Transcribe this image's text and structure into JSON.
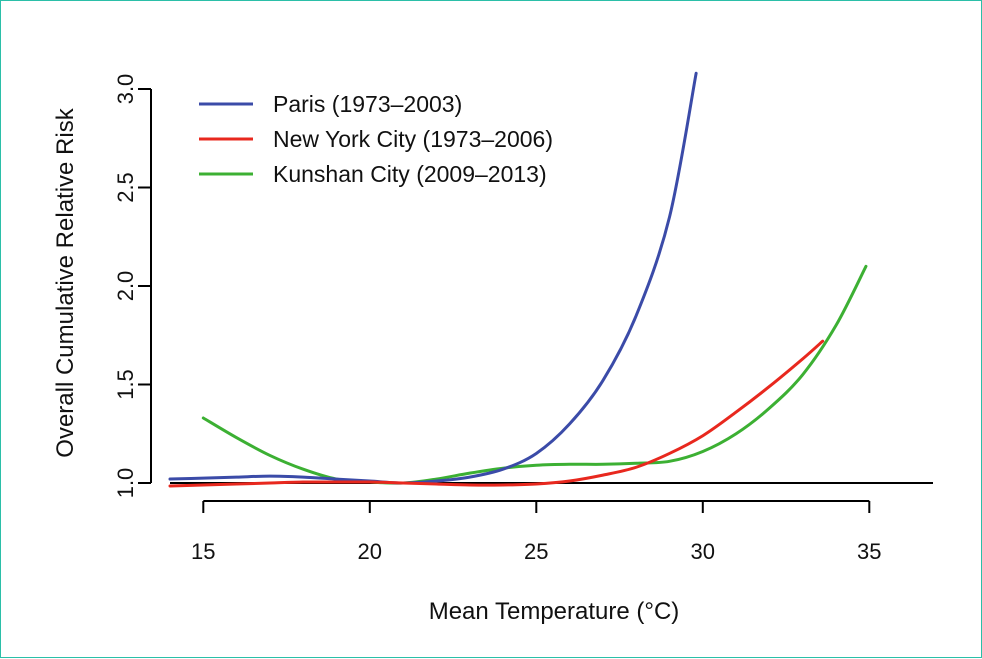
{
  "chart_data": {
    "type": "line",
    "title": "",
    "xlabel": "Mean Temperature (°C)",
    "ylabel": "Overall Cumulative Relative Risk",
    "xlim": [
      14,
      37
    ],
    "ylim": [
      1.0,
      3.0
    ],
    "x_ticks": [
      15,
      20,
      25,
      30,
      35
    ],
    "y_ticks": [
      1.0,
      1.5,
      2.0,
      2.5,
      3.0
    ],
    "x_tick_labels": [
      "15",
      "20",
      "25",
      "30",
      "35"
    ],
    "y_tick_labels": [
      "1.0",
      "1.5",
      "2.0",
      "2.5",
      "3.0"
    ],
    "reference_line_y": 1.0,
    "grid": false,
    "legend_position": "top-left",
    "series": [
      {
        "name": "Paris (1973–2003)",
        "color": "#3b4ba8",
        "x": [
          14,
          15,
          16,
          17,
          18,
          19,
          20,
          21,
          22,
          23,
          24,
          25,
          26,
          27,
          28,
          29,
          29.8
        ],
        "y": [
          1.02,
          1.025,
          1.03,
          1.035,
          1.03,
          1.02,
          1.01,
          1.0,
          1.01,
          1.03,
          1.07,
          1.15,
          1.3,
          1.52,
          1.85,
          2.35,
          3.08
        ]
      },
      {
        "name": "New York City (1973–2006)",
        "color": "#e8281e",
        "x": [
          14,
          15,
          16,
          17,
          18,
          19,
          20,
          21,
          22,
          23,
          24,
          25,
          26,
          27,
          28,
          29,
          30,
          31,
          32,
          33,
          33.6
        ],
        "y": [
          0.985,
          0.99,
          0.995,
          1.0,
          1.005,
          1.005,
          1.005,
          1.0,
          0.995,
          0.99,
          0.99,
          0.995,
          1.01,
          1.04,
          1.08,
          1.15,
          1.24,
          1.36,
          1.49,
          1.63,
          1.72
        ]
      },
      {
        "name": "Kunshan City (2009–2013)",
        "color": "#3cb033",
        "x": [
          15,
          16,
          17,
          18,
          19,
          20,
          21,
          22,
          23,
          24,
          25,
          26,
          27,
          28,
          29,
          30,
          31,
          32,
          33,
          34,
          34.9
        ],
        "y": [
          1.33,
          1.23,
          1.14,
          1.07,
          1.02,
          1.005,
          1.0,
          1.02,
          1.05,
          1.075,
          1.09,
          1.095,
          1.095,
          1.1,
          1.11,
          1.16,
          1.25,
          1.38,
          1.55,
          1.8,
          2.1
        ]
      }
    ]
  }
}
